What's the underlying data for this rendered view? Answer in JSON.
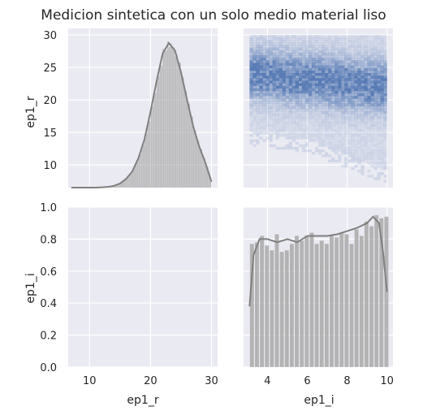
{
  "chart_data": {
    "type": "pairplot",
    "title": "Medicion sintetica con un solo medio material liso",
    "variables": [
      "ep1_r",
      "ep1_i"
    ],
    "style": {
      "background": "#eaeaf2",
      "grid": true,
      "grid_color": "#ffffff",
      "hist_color": "#a9a9a9",
      "kde_color": "#808080",
      "heatmap_base": "#4c72b0"
    },
    "axes": {
      "ep1_r": {
        "range": [
          6.5,
          31
        ],
        "ticks": [
          10,
          20,
          30
        ],
        "label_ticks": [
          "10",
          "20",
          "30"
        ],
        "y_ticks": [
          10,
          15,
          20,
          25,
          30
        ],
        "y_label_ticks": [
          "10",
          "15",
          "20",
          "25",
          "30"
        ]
      },
      "ep1_i": {
        "range": [
          2.8,
          10.3
        ],
        "ticks": [
          4,
          6,
          8,
          10
        ],
        "label_ticks": [
          "4",
          "6",
          "8",
          "10"
        ],
        "y_ticks": [
          0.0,
          0.2,
          0.4,
          0.6,
          0.8,
          1.0
        ],
        "y_label_ticks": [
          "0.0",
          "0.2",
          "0.4",
          "0.6",
          "0.8",
          "1.0"
        ]
      }
    },
    "hist_ep1_r": {
      "x": [
        7,
        8,
        9,
        10,
        11,
        12,
        13,
        14,
        15,
        16,
        17,
        18,
        19,
        20,
        21,
        22,
        23,
        24,
        25,
        26,
        27,
        28,
        29,
        30
      ],
      "density": [
        0.0,
        0.0,
        0.0,
        0.0,
        0.0,
        0.002,
        0.005,
        0.012,
        0.028,
        0.06,
        0.11,
        0.2,
        0.33,
        0.52,
        0.73,
        0.92,
        0.99,
        0.94,
        0.79,
        0.6,
        0.42,
        0.28,
        0.17,
        0.04
      ]
    },
    "hist_ep1_i": {
      "x": [
        3.1,
        3.35,
        3.6,
        3.85,
        4.1,
        4.35,
        4.6,
        4.85,
        5.1,
        5.35,
        5.6,
        5.85,
        6.1,
        6.35,
        6.6,
        6.85,
        7.1,
        7.35,
        7.6,
        7.85,
        8.1,
        8.35,
        8.6,
        8.85,
        9.1,
        9.35,
        9.6,
        9.85
      ],
      "values": [
        0.77,
        0.78,
        0.82,
        0.76,
        0.73,
        0.83,
        0.72,
        0.73,
        0.77,
        0.82,
        0.79,
        0.82,
        0.84,
        0.77,
        0.79,
        0.77,
        0.82,
        0.81,
        0.84,
        0.83,
        0.77,
        0.86,
        0.82,
        0.91,
        0.88,
        0.95,
        0.93,
        0.94
      ]
    },
    "kde_ep1_i": {
      "x": [
        3.1,
        3.3,
        3.6,
        4.0,
        4.5,
        5.0,
        5.5,
        6.0,
        6.5,
        7.0,
        7.5,
        8.0,
        8.5,
        9.0,
        9.3,
        9.6,
        9.8,
        10.0
      ],
      "y": [
        0.38,
        0.7,
        0.8,
        0.8,
        0.78,
        0.8,
        0.78,
        0.82,
        0.82,
        0.82,
        0.83,
        0.85,
        0.87,
        0.9,
        0.94,
        0.9,
        0.72,
        0.47
      ]
    },
    "heatmap": {
      "x_label": "ep1_i",
      "y_label": "ep1_r",
      "x_range": [
        3.1,
        10.0
      ],
      "y_range": [
        6.5,
        30.0
      ],
      "peak_ep1_r_at_low_ep1_i": 24,
      "peak_ep1_r_at_high_ep1_i": 22,
      "note_lower_edge": [
        [
          3.1,
          13
        ],
        [
          6.0,
          12
        ],
        [
          10.0,
          7
        ]
      ]
    }
  }
}
